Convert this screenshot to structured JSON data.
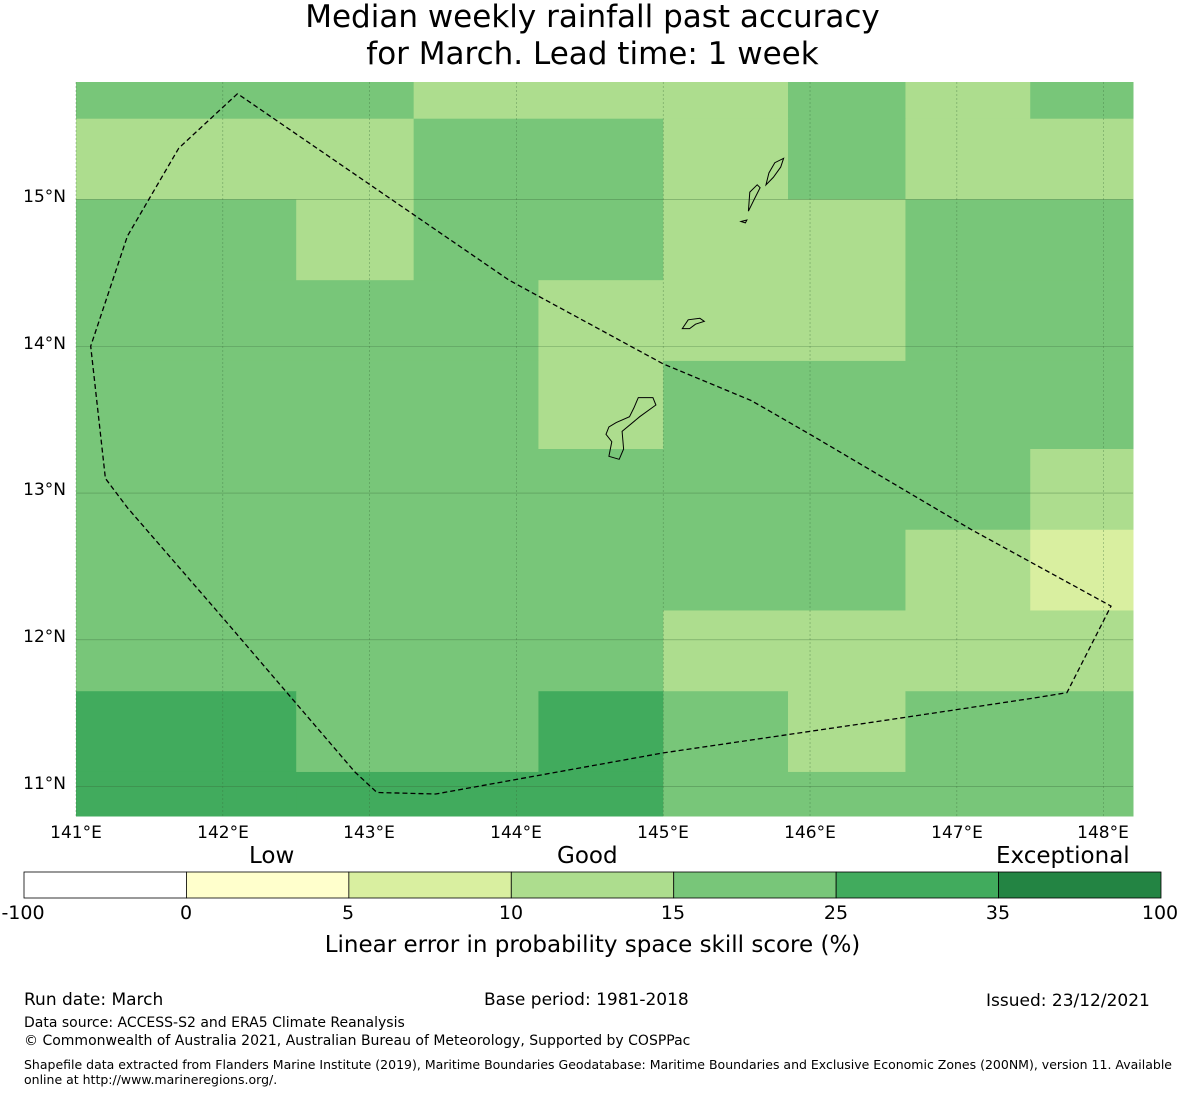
{
  "title": {
    "line1": "Median weekly rainfall past accuracy",
    "line2": "for March. Lead time: 1 week"
  },
  "map": {
    "lat_labels": [
      "15°N",
      "14°N",
      "13°N",
      "12°N",
      "11°N"
    ],
    "lon_labels": [
      "141°E",
      "142°E",
      "143°E",
      "144°E",
      "145°E",
      "146°E",
      "147°E",
      "148°E"
    ],
    "lat_range": [
      10.8,
      15.8
    ],
    "lon_range": [
      141.0,
      148.2
    ],
    "colors": {
      "5-10": "#d9efa0",
      "10-15": "#addd8e",
      "15-25": "#78c679",
      "25-35": "#41ab5d"
    },
    "grid_cells": [
      {
        "lon": [
          141.0,
          143.3
        ],
        "lat": [
          15.55,
          15.8
        ],
        "cls": "15-25"
      },
      {
        "lon": [
          143.3,
          145.0
        ],
        "lat": [
          15.55,
          15.8
        ],
        "cls": "10-15"
      },
      {
        "lon": [
          145.0,
          145.85
        ],
        "lat": [
          15.55,
          15.8
        ],
        "cls": "10-15"
      },
      {
        "lon": [
          145.85,
          146.65
        ],
        "lat": [
          15.55,
          15.8
        ],
        "cls": "15-25"
      },
      {
        "lon": [
          146.65,
          147.5
        ],
        "lat": [
          15.55,
          15.8
        ],
        "cls": "10-15"
      },
      {
        "lon": [
          147.5,
          148.2
        ],
        "lat": [
          15.55,
          15.8
        ],
        "cls": "15-25"
      },
      {
        "lon": [
          141.0,
          143.3
        ],
        "lat": [
          15.0,
          15.55
        ],
        "cls": "10-15"
      },
      {
        "lon": [
          143.3,
          145.0
        ],
        "lat": [
          15.0,
          15.55
        ],
        "cls": "15-25"
      },
      {
        "lon": [
          145.0,
          145.85
        ],
        "lat": [
          15.0,
          15.55
        ],
        "cls": "10-15"
      },
      {
        "lon": [
          145.85,
          146.65
        ],
        "lat": [
          15.0,
          15.55
        ],
        "cls": "15-25"
      },
      {
        "lon": [
          146.65,
          148.2
        ],
        "lat": [
          15.0,
          15.55
        ],
        "cls": "10-15"
      },
      {
        "lon": [
          141.0,
          142.5
        ],
        "lat": [
          14.45,
          15.0
        ],
        "cls": "15-25"
      },
      {
        "lon": [
          142.5,
          143.3
        ],
        "lat": [
          14.45,
          15.0
        ],
        "cls": "10-15"
      },
      {
        "lon": [
          143.3,
          145.0
        ],
        "lat": [
          14.45,
          15.0
        ],
        "cls": "15-25"
      },
      {
        "lon": [
          145.0,
          146.65
        ],
        "lat": [
          14.45,
          15.0
        ],
        "cls": "10-15"
      },
      {
        "lon": [
          146.65,
          148.2
        ],
        "lat": [
          14.45,
          15.0
        ],
        "cls": "15-25"
      },
      {
        "lon": [
          141.0,
          144.15
        ],
        "lat": [
          13.9,
          14.45
        ],
        "cls": "15-25"
      },
      {
        "lon": [
          144.15,
          145.0
        ],
        "lat": [
          13.9,
          14.45
        ],
        "cls": "10-15"
      },
      {
        "lon": [
          145.0,
          146.65
        ],
        "lat": [
          13.9,
          14.45
        ],
        "cls": "10-15"
      },
      {
        "lon": [
          146.65,
          148.2
        ],
        "lat": [
          13.9,
          14.45
        ],
        "cls": "15-25"
      },
      {
        "lon": [
          141.0,
          144.15
        ],
        "lat": [
          13.3,
          13.9
        ],
        "cls": "15-25"
      },
      {
        "lon": [
          144.15,
          145.0
        ],
        "lat": [
          13.3,
          13.9
        ],
        "cls": "10-15"
      },
      {
        "lon": [
          145.0,
          148.2
        ],
        "lat": [
          13.3,
          13.9
        ],
        "cls": "15-25"
      },
      {
        "lon": [
          141.0,
          147.5
        ],
        "lat": [
          12.75,
          13.3
        ],
        "cls": "15-25"
      },
      {
        "lon": [
          147.5,
          148.2
        ],
        "lat": [
          12.75,
          13.3
        ],
        "cls": "10-15"
      },
      {
        "lon": [
          141.0,
          146.65
        ],
        "lat": [
          12.2,
          12.75
        ],
        "cls": "15-25"
      },
      {
        "lon": [
          146.65,
          147.5
        ],
        "lat": [
          12.2,
          12.75
        ],
        "cls": "10-15"
      },
      {
        "lon": [
          147.5,
          148.2
        ],
        "lat": [
          12.2,
          12.75
        ],
        "cls": "5-10"
      },
      {
        "lon": [
          141.0,
          145.0
        ],
        "lat": [
          11.65,
          12.2
        ],
        "cls": "15-25"
      },
      {
        "lon": [
          145.0,
          148.2
        ],
        "lat": [
          11.65,
          12.2
        ],
        "cls": "10-15"
      },
      {
        "lon": [
          141.0,
          142.5
        ],
        "lat": [
          11.1,
          11.65
        ],
        "cls": "25-35"
      },
      {
        "lon": [
          142.5,
          144.15
        ],
        "lat": [
          11.1,
          11.65
        ],
        "cls": "15-25"
      },
      {
        "lon": [
          144.15,
          145.0
        ],
        "lat": [
          11.1,
          11.65
        ],
        "cls": "25-35"
      },
      {
        "lon": [
          145.0,
          145.85
        ],
        "lat": [
          11.1,
          11.65
        ],
        "cls": "15-25"
      },
      {
        "lon": [
          145.85,
          146.65
        ],
        "lat": [
          11.1,
          11.65
        ],
        "cls": "10-15"
      },
      {
        "lon": [
          146.65,
          148.2
        ],
        "lat": [
          11.1,
          11.65
        ],
        "cls": "15-25"
      },
      {
        "lon": [
          141.0,
          142.5
        ],
        "lat": [
          10.8,
          11.1
        ],
        "cls": "25-35"
      },
      {
        "lon": [
          142.5,
          145.0
        ],
        "lat": [
          10.8,
          11.1
        ],
        "cls": "25-35"
      },
      {
        "lon": [
          145.0,
          148.2
        ],
        "lat": [
          10.8,
          11.1
        ],
        "cls": "15-25"
      }
    ],
    "eez_boundary": [
      [
        142.1,
        15.72
      ],
      [
        141.7,
        15.35
      ],
      [
        141.35,
        14.75
      ],
      [
        141.1,
        14.0
      ],
      [
        141.2,
        13.1
      ],
      [
        141.35,
        12.9
      ],
      [
        142.0,
        12.15
      ],
      [
        142.9,
        11.1
      ],
      [
        143.05,
        10.96
      ],
      [
        143.45,
        10.95
      ],
      [
        145.0,
        11.23
      ],
      [
        146.5,
        11.45
      ],
      [
        147.5,
        11.6
      ],
      [
        147.75,
        11.64
      ],
      [
        148.05,
        12.23
      ],
      [
        147.1,
        12.75
      ],
      [
        146.0,
        13.4
      ],
      [
        145.6,
        13.63
      ],
      [
        145.0,
        13.88
      ],
      [
        143.95,
        14.45
      ],
      [
        142.1,
        15.72
      ]
    ],
    "islands": [
      {
        "name": "Guam",
        "coords": [
          [
            144.63,
            13.25
          ],
          [
            144.7,
            13.23
          ],
          [
            144.73,
            13.3
          ],
          [
            144.72,
            13.42
          ],
          [
            144.84,
            13.52
          ],
          [
            144.95,
            13.6
          ],
          [
            144.93,
            13.65
          ],
          [
            144.83,
            13.65
          ],
          [
            144.8,
            13.58
          ],
          [
            144.77,
            13.52
          ],
          [
            144.68,
            13.48
          ],
          [
            144.63,
            13.45
          ],
          [
            144.61,
            13.4
          ],
          [
            144.65,
            13.35
          ],
          [
            144.63,
            13.25
          ]
        ]
      },
      {
        "name": "Rota",
        "coords": [
          [
            145.13,
            14.12
          ],
          [
            145.17,
            14.18
          ],
          [
            145.25,
            14.19
          ],
          [
            145.28,
            14.17
          ],
          [
            145.22,
            14.15
          ],
          [
            145.18,
            14.12
          ],
          [
            145.13,
            14.12
          ]
        ]
      },
      {
        "name": "Tinian",
        "coords": [
          [
            145.58,
            14.92
          ],
          [
            145.62,
            15.0
          ],
          [
            145.66,
            15.08
          ],
          [
            145.64,
            15.1
          ],
          [
            145.59,
            15.05
          ],
          [
            145.58,
            14.92
          ]
        ]
      },
      {
        "name": "Saipan",
        "coords": [
          [
            145.7,
            15.1
          ],
          [
            145.72,
            15.18
          ],
          [
            145.76,
            15.25
          ],
          [
            145.82,
            15.28
          ],
          [
            145.8,
            15.22
          ],
          [
            145.75,
            15.15
          ],
          [
            145.7,
            15.1
          ]
        ]
      },
      {
        "name": "Aguijan",
        "coords": [
          [
            145.53,
            14.85
          ],
          [
            145.57,
            14.86
          ],
          [
            145.56,
            14.84
          ],
          [
            145.53,
            14.85
          ]
        ]
      }
    ]
  },
  "colorbar": {
    "categories": [
      "Low",
      "Good",
      "Exceptional"
    ],
    "ticks": [
      "-100",
      "0",
      "5",
      "10",
      "15",
      "25",
      "35",
      "100"
    ],
    "colors": [
      "#ffffff",
      "#ffffcc",
      "#d9efa0",
      "#addd8e",
      "#78c679",
      "#41ab5d",
      "#238443"
    ],
    "title": "Linear error in probability space skill score (%)"
  },
  "footer": {
    "run_date": "Run date: March",
    "base_period": "Base period: 1981-2018",
    "issued": "Issued: 23/12/2021",
    "data_source": "Data source: ACCESS-S2 and ERA5 Climate Reanalysis",
    "copyright": "© Commonwealth of Australia 2021, Australian Bureau of Meteorology, Supported by COSPPac",
    "shapefile_note": "Shapefile data extracted from Flanders Marine Institute (2019), Maritime Boundaries Geodatabase: Maritime Boundaries and Exclusive Economic Zones (200NM), version 11. Available online at http://www.marineregions.org/."
  }
}
